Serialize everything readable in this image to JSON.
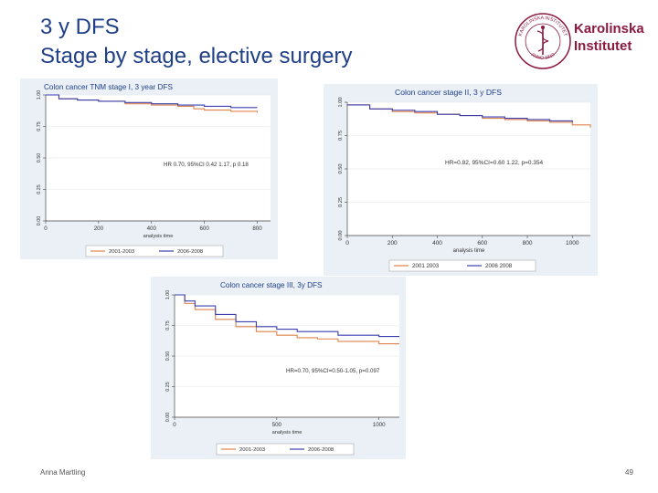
{
  "slide": {
    "title_line1": "3 y DFS",
    "title_line2": "Stage by stage, elective surgery",
    "footer_author": "Anna Martling",
    "page_number": "49",
    "colors": {
      "title": "#1f3f87",
      "logo": "#8b1a3e",
      "series_a": "#e0824a",
      "series_b": "#3b3fb0"
    }
  },
  "logo": {
    "seal_text": "KAROLINSKA INSTITUTET",
    "seal_year": "ANNO 1810",
    "name_line1": "Karolinska",
    "name_line2": "Institutet"
  },
  "chart_data": [
    {
      "type": "line",
      "title": "Colon cancer TNM stage I, 3 year DFS",
      "xlabel": "analysis time",
      "ylabel": "",
      "xlim": [
        0,
        850
      ],
      "ylim": [
        0,
        1
      ],
      "xticks": [
        0,
        200,
        400,
        600,
        800
      ],
      "yticks": [
        "0.00",
        "0.25",
        "0.50",
        "0.75",
        "1.00"
      ],
      "annotation": "HR 0.70, 95%CI 0.42 1.17, p 0.18",
      "legend": [
        "2001-2003",
        "2006-2008"
      ],
      "series": [
        {
          "name": "2001-2003",
          "x": [
            0,
            50,
            120,
            200,
            300,
            400,
            500,
            560,
            600,
            700,
            800
          ],
          "y": [
            1.0,
            0.97,
            0.96,
            0.95,
            0.93,
            0.92,
            0.91,
            0.89,
            0.88,
            0.87,
            0.86
          ]
        },
        {
          "name": "2006-2008",
          "x": [
            0,
            50,
            120,
            200,
            300,
            400,
            500,
            600,
            700,
            800
          ],
          "y": [
            1.0,
            0.97,
            0.96,
            0.95,
            0.94,
            0.93,
            0.92,
            0.91,
            0.9,
            0.9
          ]
        }
      ]
    },
    {
      "type": "line",
      "title": "Colon cancer stage II, 3 y DFS",
      "xlabel": "analysis time",
      "ylabel": "",
      "xlim": [
        0,
        1080
      ],
      "ylim": [
        0,
        1
      ],
      "xticks": [
        0,
        200,
        400,
        600,
        800,
        1000
      ],
      "yticks": [
        "0.00",
        "0.25",
        "0.50",
        "0.75",
        "1.00"
      ],
      "annotation": "HR=0.82, 95%CI=0.60 1.22, p=0.354",
      "legend": [
        "2001 2003",
        "2006 2008"
      ],
      "series": [
        {
          "name": "2001 2003",
          "x": [
            0,
            100,
            200,
            300,
            400,
            500,
            600,
            700,
            800,
            900,
            1000,
            1080
          ],
          "y": [
            0.98,
            0.95,
            0.93,
            0.92,
            0.91,
            0.9,
            0.88,
            0.87,
            0.86,
            0.85,
            0.83,
            0.81
          ]
        },
        {
          "name": "2006 2008",
          "x": [
            0,
            100,
            200,
            300,
            400,
            500,
            600,
            700,
            800,
            900,
            1000
          ],
          "y": [
            0.98,
            0.95,
            0.94,
            0.93,
            0.91,
            0.9,
            0.89,
            0.88,
            0.87,
            0.86,
            0.85
          ]
        }
      ]
    },
    {
      "type": "line",
      "title": "Colon cancer stage III, 3y DFS",
      "xlabel": "analysis time",
      "ylabel": "",
      "xlim": [
        0,
        1100
      ],
      "ylim": [
        0,
        1
      ],
      "xticks": [
        0,
        500,
        1000
      ],
      "yticks": [
        "0.00",
        "0.25",
        "0.50",
        "0.75",
        "1.00"
      ],
      "annotation": "HR=0.70, 95%CI=0.50-1.05, p=0.097",
      "legend": [
        "2001-2003",
        "2006-2008"
      ],
      "series": [
        {
          "name": "2001-2003",
          "x": [
            0,
            50,
            100,
            200,
            300,
            400,
            500,
            600,
            700,
            800,
            900,
            1000,
            1100
          ],
          "y": [
            1.0,
            0.93,
            0.88,
            0.8,
            0.74,
            0.7,
            0.67,
            0.65,
            0.64,
            0.62,
            0.62,
            0.6,
            0.6
          ]
        },
        {
          "name": "2006-2008",
          "x": [
            0,
            50,
            100,
            200,
            300,
            400,
            500,
            600,
            700,
            800,
            900,
            1000,
            1100
          ],
          "y": [
            1.0,
            0.95,
            0.91,
            0.84,
            0.78,
            0.74,
            0.72,
            0.7,
            0.7,
            0.67,
            0.67,
            0.66,
            0.66
          ]
        }
      ]
    }
  ]
}
